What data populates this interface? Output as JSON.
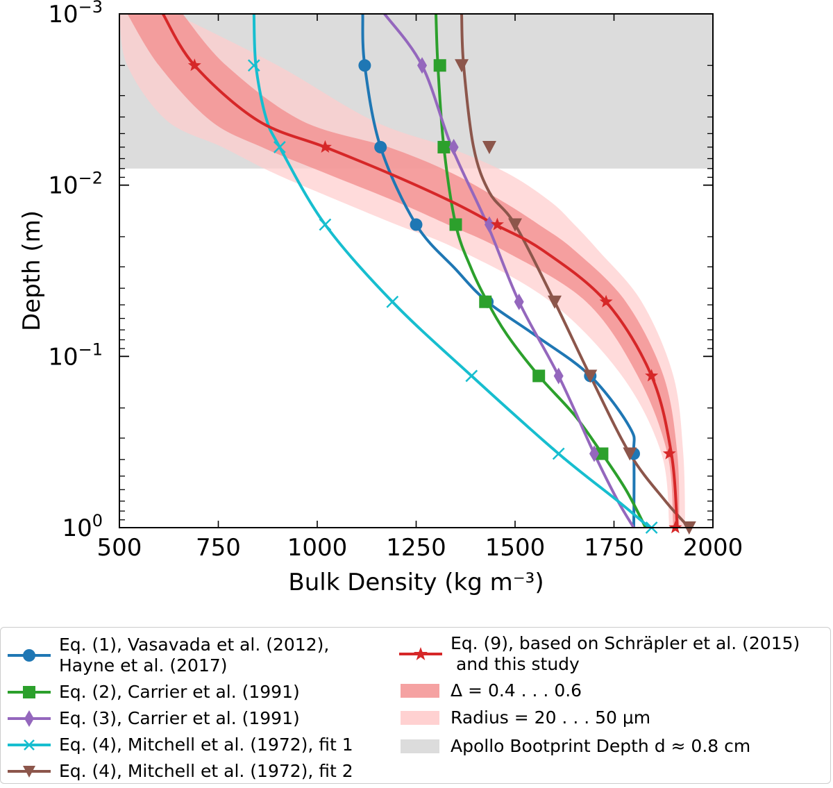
{
  "chart_data": {
    "type": "line",
    "xlabel": "Bulk Density (kg m⁻³)",
    "ylabel": "Depth (m)",
    "xlim": [
      500,
      2000
    ],
    "ylim": [
      0.001,
      1
    ],
    "yscale": "log",
    "y_inverted": true,
    "x_ticks": [
      "500",
      "750",
      "1000",
      "1250",
      "1500",
      "1750",
      "2000"
    ],
    "y_ticks": [
      {
        "base": "10",
        "exp": "−3"
      },
      {
        "base": "10",
        "exp": "−2"
      },
      {
        "base": "10",
        "exp": "−1"
      },
      {
        "base": "10",
        "exp": "0"
      }
    ],
    "series": [
      {
        "name": "Eq. (1), Vasavada et al. (2012),",
        "name2": "Hayne et al. (2017)",
        "color": "#1f77b4",
        "marker": "circle",
        "x": [
          1115,
          1120,
          1160,
          1250,
          1350,
          1430,
          1550,
          1690,
          1790,
          1800,
          1800
        ],
        "y": [
          0.001,
          0.002,
          0.006,
          0.017,
          0.031,
          0.048,
          0.075,
          0.13,
          0.26,
          0.37,
          1.0
        ]
      },
      {
        "name": "Eq. (2), Carrier et al. (1991)",
        "color": "#2ca02c",
        "marker": "square",
        "x": [
          1300,
          1305,
          1320,
          1350,
          1390,
          1430,
          1480,
          1560,
          1650,
          1720,
          1780,
          1830
        ],
        "y": [
          0.001,
          0.002,
          0.006,
          0.017,
          0.031,
          0.048,
          0.075,
          0.13,
          0.22,
          0.37,
          0.6,
          1.0
        ]
      },
      {
        "name": "Eq. (3), Carrier et al. (1991)",
        "color": "#9467bd",
        "marker": "diamond",
        "x": [
          1170,
          1265,
          1340,
          1430,
          1510,
          1610,
          1700,
          1760,
          1800
        ],
        "y": [
          0.001,
          0.002,
          0.006,
          0.017,
          0.048,
          0.13,
          0.37,
          0.7,
          1.0
        ]
      },
      {
        "name": "Eq. (4), Mitchell et al. (1972), fit 1",
        "color": "#17becf",
        "marker": "x",
        "x": [
          840,
          845,
          870,
          905,
          1020,
          1190,
          1390,
          1610,
          1760,
          1840
        ],
        "y": [
          0.001,
          0.002,
          0.004,
          0.006,
          0.017,
          0.048,
          0.13,
          0.37,
          0.7,
          1.0
        ]
      },
      {
        "name": "Eq. (4), Mitchell et al. (1972), fit 2",
        "color": "#8c564b",
        "marker": "triangle-down",
        "x": [
          1365,
          1370,
          1395,
          1435,
          1500,
          1600,
          1690,
          1790,
          1880,
          1940
        ],
        "y": [
          0.001,
          0.002,
          0.006,
          0.011,
          0.017,
          0.048,
          0.13,
          0.37,
          0.7,
          1.0
        ]
      },
      {
        "name": "Eq. (9), based on Schräpler et al. (2015)",
        "name2": " and this study",
        "color": "#d62728",
        "marker": "star",
        "x": [
          610,
          690,
          850,
          1020,
          1180,
          1340,
          1450,
          1570,
          1730,
          1845,
          1895,
          1910
        ],
        "y": [
          0.001,
          0.002,
          0.0042,
          0.006,
          0.0085,
          0.0125,
          0.017,
          0.024,
          0.048,
          0.13,
          0.37,
          1.0
        ]
      }
    ],
    "markers": {
      "Eq. (1)": {
        "x": [
          1120,
          1160,
          1250,
          1430,
          1690,
          1800
        ],
        "y": [
          0.002,
          0.006,
          0.017,
          0.048,
          0.13,
          0.37
        ]
      },
      "Eq. (2)": {
        "x": [
          1310,
          1320,
          1350,
          1425,
          1560,
          1720
        ],
        "y": [
          0.002,
          0.006,
          0.017,
          0.048,
          0.13,
          0.37
        ]
      },
      "Eq. (3)": {
        "x": [
          1265,
          1345,
          1435,
          1510,
          1610,
          1700
        ],
        "y": [
          0.002,
          0.006,
          0.017,
          0.048,
          0.13,
          0.37
        ]
      },
      "Eq. (4) fit 1": {
        "x": [
          840,
          905,
          1020,
          1190,
          1390,
          1610,
          1845
        ],
        "y": [
          0.002,
          0.006,
          0.017,
          0.048,
          0.13,
          0.37,
          1.0
        ]
      },
      "Eq. (4) fit 2": {
        "x": [
          1365,
          1435,
          1500,
          1600,
          1690,
          1790,
          1940
        ],
        "y": [
          0.002,
          0.006,
          0.017,
          0.048,
          0.13,
          0.37,
          1.0
        ]
      },
      "Eq. (9)": {
        "x": [
          690,
          1020,
          1455,
          1730,
          1845,
          1890,
          1905
        ],
        "y": [
          0.002,
          0.006,
          0.017,
          0.048,
          0.13,
          0.37,
          1.0
        ]
      }
    },
    "bands": [
      {
        "name": "Δ = 0.4 . . . 0.6",
        "color": "#f28b8b",
        "opacity": 0.75,
        "y": [
          0.001,
          0.002,
          0.0042,
          0.006,
          0.0085,
          0.0125,
          0.017,
          0.024,
          0.048,
          0.13,
          0.37,
          1.0
        ],
        "lo": [
          520,
          600,
          730,
          860,
          1020,
          1200,
          1330,
          1470,
          1680,
          1810,
          1885,
          1900
        ],
        "hi": [
          660,
          770,
          960,
          1180,
          1340,
          1470,
          1560,
          1650,
          1780,
          1875,
          1910,
          1915
        ]
      },
      {
        "name": "Radius = 20 . . . 50 μm",
        "color": "#ffcccc",
        "opacity": 0.7,
        "y": [
          0.001,
          0.002,
          0.0042,
          0.006,
          0.0085,
          0.0125,
          0.017,
          0.024,
          0.048,
          0.13,
          0.37,
          1.0
        ],
        "lo": [
          500,
          520,
          620,
          760,
          890,
          1060,
          1200,
          1360,
          1590,
          1770,
          1870,
          1890
        ],
        "hi": [
          640,
          900,
          1140,
          1330,
          1480,
          1590,
          1650,
          1710,
          1820,
          1900,
          1925,
          1930
        ]
      }
    ],
    "shaded_region": {
      "name": "Apollo Bootprint Depth d ≈ 0.8 cm",
      "y_from": 0.001,
      "y_to": 0.008,
      "color": "#dcdcdc"
    }
  },
  "legend": {
    "left": [
      {
        "line1": "Eq. (1), Vasavada et al. (2012),",
        "line2": "Hayne et al. (2017)"
      },
      {
        "line1": "Eq. (2), Carrier et al. (1991)"
      },
      {
        "line1": "Eq. (3), Carrier et al. (1991)"
      },
      {
        "line1": "Eq. (4), Mitchell et al. (1972), fit 1"
      },
      {
        "line1": "Eq. (4), Mitchell et al. (1972), fit 2"
      }
    ],
    "right": [
      {
        "line1": "Eq. (9), based on Schräpler et al. (2015)",
        "line2": " and this study"
      },
      {
        "line1": "Δ = 0.4 . . . 0.6"
      },
      {
        "line1": "Radius = 20 . . . 50 μm"
      },
      {
        "line1": "Apollo Bootprint Depth d ≈ 0.8 cm"
      }
    ]
  }
}
